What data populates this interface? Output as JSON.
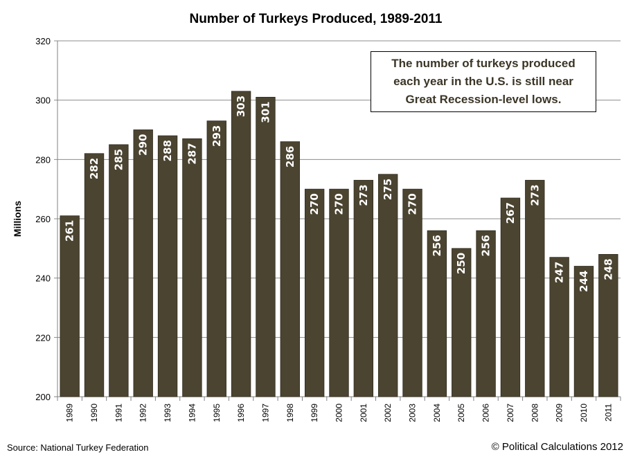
{
  "chart_data": {
    "type": "bar",
    "title": "Number of Turkeys Produced, 1989-2011",
    "ylabel": "Millions",
    "xlabel": "",
    "ylim": [
      200,
      320
    ],
    "yticks": [
      200,
      220,
      240,
      260,
      280,
      300,
      320
    ],
    "grid": true,
    "bar_color": "#4b4431",
    "categories": [
      "1989",
      "1990",
      "1991",
      "1992",
      "1993",
      "1994",
      "1995",
      "1996",
      "1997",
      "1998",
      "1999",
      "2000",
      "2001",
      "2002",
      "2003",
      "2004",
      "2005",
      "2006",
      "2007",
      "2008",
      "2009",
      "2010",
      "2011"
    ],
    "values": [
      261,
      282,
      285,
      290,
      288,
      287,
      293,
      303,
      301,
      286,
      270,
      270,
      273,
      275,
      270,
      256,
      250,
      256,
      267,
      273,
      247,
      244,
      248
    ],
    "annotation": "The number of turkeys produced each year  in the U.S. is still near Great Recession-level lows."
  },
  "footer": {
    "source": "Source: National Turkey Federation",
    "credit": "© Political Calculations 2012"
  }
}
